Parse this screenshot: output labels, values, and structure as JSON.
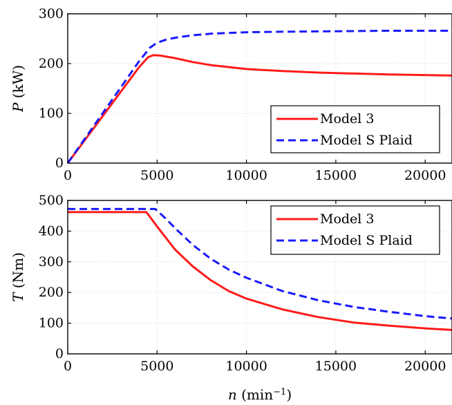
{
  "chart_data": [
    {
      "type": "line",
      "panel": "top",
      "xlabel": "",
      "ylabel": "P (kW)",
      "xlim": [
        0,
        21500
      ],
      "ylim": [
        0,
        300
      ],
      "xticks": [
        0,
        5000,
        10000,
        15000,
        20000
      ],
      "yticks": [
        0,
        100,
        200,
        300
      ],
      "grid": true,
      "legend_position": "bottom-right",
      "series": [
        {
          "name": "Model 3",
          "color": "#ff1a1a",
          "style": "solid",
          "x": [
            0,
            4000,
            4500,
            4800,
            5200,
            6000,
            7000,
            8000,
            9000,
            10000,
            12000,
            14000,
            16000,
            18000,
            20000,
            21500
          ],
          "y": [
            0,
            193,
            213,
            217,
            216,
            211,
            203,
            197,
            193,
            189,
            185,
            182,
            180,
            178,
            177,
            176
          ]
        },
        {
          "name": "Model S Plaid",
          "color": "#1a1aff",
          "style": "dashed",
          "x": [
            0,
            4000,
            4600,
            5000,
            5500,
            6000,
            7000,
            8000,
            10000,
            12000,
            15000,
            18000,
            21500
          ],
          "y": [
            0,
            205,
            232,
            242,
            248,
            252,
            257,
            260,
            263,
            264,
            265,
            266,
            266
          ]
        }
      ]
    },
    {
      "type": "line",
      "panel": "bottom",
      "xlabel": "n (min−1)",
      "ylabel": "T (Nm)",
      "xlim": [
        0,
        21500
      ],
      "ylim": [
        0,
        500
      ],
      "xticks": [
        0,
        5000,
        10000,
        15000,
        20000
      ],
      "yticks": [
        0,
        100,
        200,
        300,
        400,
        500
      ],
      "grid": true,
      "legend_position": "top-right",
      "series": [
        {
          "name": "Model 3",
          "color": "#ff1a1a",
          "style": "solid",
          "x": [
            0,
            4400,
            5000,
            6000,
            7000,
            8000,
            9000,
            10000,
            12000,
            14000,
            16000,
            18000,
            20000,
            21500
          ],
          "y": [
            462,
            462,
            415,
            340,
            285,
            240,
            205,
            180,
            145,
            120,
            102,
            92,
            83,
            78
          ]
        },
        {
          "name": "Model S Plaid",
          "color": "#1a1aff",
          "style": "dashed",
          "x": [
            0,
            4900,
            5500,
            6000,
            7000,
            8000,
            9000,
            10000,
            12000,
            14000,
            16000,
            18000,
            20000,
            21500
          ],
          "y": [
            472,
            472,
            440,
            410,
            355,
            310,
            275,
            248,
            205,
            175,
            153,
            137,
            123,
            115
          ]
        }
      ]
    }
  ]
}
